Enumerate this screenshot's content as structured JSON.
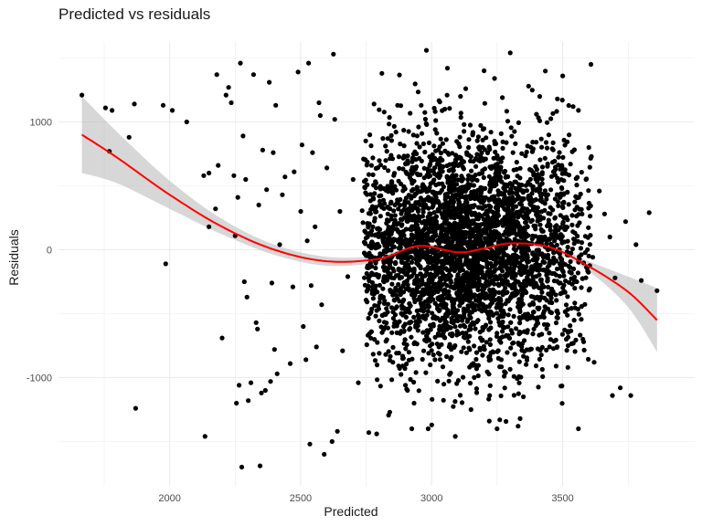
{
  "chart_data": {
    "type": "scatter",
    "title": "Predicted vs residuals",
    "xlabel": "Predicted",
    "ylabel": "Residuals",
    "xlim": [
      1600,
      3900
    ],
    "ylim": [
      -1700,
      1600
    ],
    "x_ticks": [
      2000,
      2500,
      3000,
      3500
    ],
    "y_ticks": [
      -1000,
      0,
      1000
    ],
    "grid": true,
    "colors": {
      "points": "#000000",
      "smooth_line": "#ff0000",
      "confidence_band": "#bdbdbd",
      "grid": "#ebebeb"
    },
    "series": [
      {
        "type": "scatter",
        "points": [
          [
            1665,
            1210
          ],
          [
            1755,
            1110
          ],
          [
            1770,
            770
          ],
          [
            1780,
            1090
          ],
          [
            1845,
            880
          ],
          [
            1865,
            1140
          ],
          [
            1870,
            -1240
          ],
          [
            1975,
            1130
          ],
          [
            1985,
            -110
          ],
          [
            2010,
            1090
          ],
          [
            2065,
            1000
          ],
          [
            2130,
            580
          ],
          [
            2135,
            -1460
          ],
          [
            2150,
            180
          ],
          [
            2150,
            600
          ],
          [
            2175,
            320
          ],
          [
            2180,
            1370
          ],
          [
            2185,
            660
          ],
          [
            2200,
            -690
          ],
          [
            2215,
            1210
          ],
          [
            2225,
            1270
          ],
          [
            2235,
            1150
          ],
          [
            2245,
            580
          ],
          [
            2250,
            110
          ],
          [
            2255,
            -1200
          ],
          [
            2260,
            410
          ],
          [
            2265,
            -1060
          ],
          [
            2270,
            1460
          ],
          [
            2275,
            -1700
          ],
          [
            2280,
            890
          ],
          [
            2285,
            -250
          ],
          [
            2290,
            550
          ],
          [
            2295,
            -370
          ],
          [
            2300,
            -1180
          ],
          [
            2310,
            -1040
          ],
          [
            2320,
            1370
          ],
          [
            2330,
            -570
          ],
          [
            2335,
            -620
          ],
          [
            2340,
            350
          ],
          [
            2345,
            -1690
          ],
          [
            2350,
            -1120
          ],
          [
            2355,
            780
          ],
          [
            2365,
            -1100
          ],
          [
            2370,
            470
          ],
          [
            2380,
            1310
          ],
          [
            2385,
            -1030
          ],
          [
            2390,
            -260
          ],
          [
            2395,
            760
          ],
          [
            2400,
            -780
          ],
          [
            2405,
            1130
          ],
          [
            2410,
            -970
          ],
          [
            2420,
            40
          ],
          [
            2430,
            430
          ],
          [
            2440,
            570
          ],
          [
            2460,
            -890
          ],
          [
            2470,
            -290
          ],
          [
            2475,
            610
          ],
          [
            2490,
            1390
          ],
          [
            2500,
            300
          ],
          [
            2505,
            820
          ],
          [
            2510,
            -600
          ],
          [
            2520,
            -860
          ],
          [
            2525,
            70
          ],
          [
            2530,
            1460
          ],
          [
            2535,
            -1520
          ],
          [
            2540,
            -280
          ],
          [
            2545,
            760
          ],
          [
            2555,
            180
          ],
          [
            2560,
            -760
          ],
          [
            2570,
            1150
          ],
          [
            2575,
            1050
          ],
          [
            2580,
            -430
          ],
          [
            2590,
            -1600
          ],
          [
            2600,
            640
          ],
          [
            2620,
            -1500
          ],
          [
            2625,
            1530
          ],
          [
            2630,
            1020
          ],
          [
            2640,
            -1420
          ],
          [
            2650,
            300
          ],
          [
            2660,
            -790
          ],
          [
            2680,
            -210
          ],
          [
            2700,
            550
          ],
          [
            2720,
            -1040
          ],
          [
            2740,
            710
          ],
          [
            2760,
            -1430
          ],
          [
            2780,
            1140
          ],
          [
            2790,
            -1440
          ],
          [
            2800,
            420
          ],
          [
            2810,
            1380
          ],
          [
            2840,
            -1270
          ],
          [
            2860,
            350
          ],
          [
            2870,
            1130
          ],
          [
            2900,
            -1060
          ],
          [
            2940,
            -960
          ],
          [
            2960,
            1130
          ],
          [
            2980,
            1560
          ],
          [
            3000,
            -1370
          ],
          [
            3020,
            700
          ],
          [
            3050,
            1100
          ],
          [
            3060,
            1420
          ],
          [
            3090,
            -1460
          ],
          [
            3110,
            1200
          ],
          [
            3130,
            1260
          ],
          [
            3150,
            -1250
          ],
          [
            3200,
            1400
          ],
          [
            3220,
            -1340
          ],
          [
            3240,
            1340
          ],
          [
            3260,
            -1330
          ],
          [
            3270,
            1190
          ],
          [
            3300,
            1540
          ],
          [
            3330,
            -1380
          ],
          [
            3350,
            -1150
          ],
          [
            3370,
            1280
          ],
          [
            3400,
            1060
          ],
          [
            3450,
            -760
          ],
          [
            3480,
            1180
          ],
          [
            3500,
            1360
          ],
          [
            3520,
            -920
          ],
          [
            3540,
            1120
          ],
          [
            3560,
            1090
          ],
          [
            3580,
            -720
          ],
          [
            3600,
            800
          ],
          [
            3620,
            -880
          ],
          [
            3640,
            460
          ],
          [
            3660,
            280
          ],
          [
            3680,
            100
          ],
          [
            3690,
            -1140
          ],
          [
            3700,
            -220
          ],
          [
            3720,
            -1080
          ],
          [
            3740,
            220
          ],
          [
            3760,
            -1140
          ],
          [
            3780,
            40
          ],
          [
            3800,
            -240
          ],
          [
            3830,
            290
          ],
          [
            3860,
            -320
          ]
        ],
        "dense_cluster": {
          "x_center": 3130,
          "x_spread": 250,
          "y_spread": 430,
          "n_points": 3600,
          "x_range": [
            2740,
            3620
          ]
        }
      },
      {
        "type": "line",
        "smoother": "loess with 95% confidence band",
        "x": [
          1665,
          1800,
          2000,
          2200,
          2400,
          2600,
          2800,
          2950,
          3100,
          3200,
          3300,
          3450,
          3600,
          3750,
          3860
        ],
        "y": [
          900,
          720,
          430,
          180,
          0,
          -90,
          -70,
          30,
          -20,
          10,
          50,
          20,
          -130,
          -330,
          -550
        ],
        "band_half_width": [
          300,
          200,
          110,
          60,
          40,
          35,
          25,
          20,
          20,
          20,
          20,
          25,
          40,
          120,
          250
        ]
      }
    ]
  }
}
